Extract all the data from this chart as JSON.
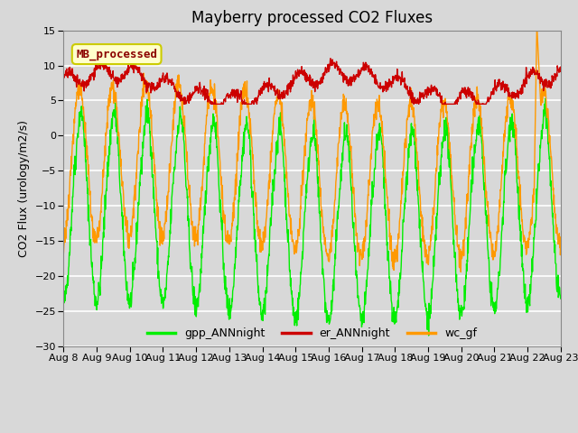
{
  "title": "Mayberry processed CO2 Fluxes",
  "ylabel": "CO2 Flux (urology/m2/s)",
  "ylim": [
    -30,
    15
  ],
  "yticks": [
    -30,
    -25,
    -20,
    -15,
    -10,
    -5,
    0,
    5,
    10,
    15
  ],
  "xtick_labels": [
    "Aug 8",
    "Aug 9",
    "Aug 10",
    "Aug 11",
    "Aug 12",
    "Aug 13",
    "Aug 14",
    "Aug 15",
    "Aug 16",
    "Aug 17",
    "Aug 18",
    "Aug 19",
    "Aug 20",
    "Aug 21",
    "Aug 22",
    "Aug 23"
  ],
  "bg_color": "#d8d8d8",
  "plot_bg_color": "#d8d8d8",
  "grid_color": "#ffffff",
  "line_gpp_color": "#00ee00",
  "line_er_color": "#cc0000",
  "line_wc_color": "#ff9900",
  "line_width": 1.0,
  "legend_labels": [
    "gpp_ANNnight",
    "er_ANNnight",
    "wc_gf"
  ],
  "annotation_text": "MB_processed",
  "annotation_color": "#8b0000",
  "annotation_bg": "#ffffcc",
  "annotation_border": "#cccc00",
  "n_points": 1500,
  "title_fontsize": 12,
  "ylabel_fontsize": 9,
  "tick_fontsize": 8,
  "legend_fontsize": 9
}
